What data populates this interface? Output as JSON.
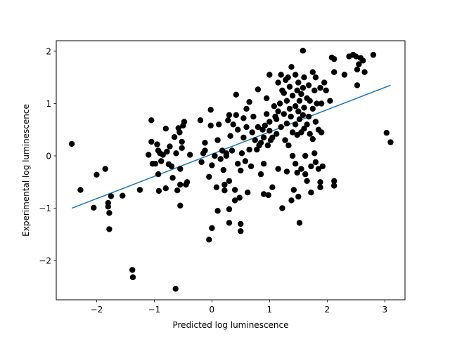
{
  "chart_data": {
    "type": "scatter",
    "title": "",
    "xlabel": "Predicted log luminescence",
    "ylabel": "Experimental log luminescence",
    "xlim": [
      -2.7,
      3.35
    ],
    "ylim": [
      -2.75,
      2.2
    ],
    "xticks": [
      -2,
      -1,
      0,
      1,
      2,
      3
    ],
    "yticks": [
      -2,
      -1,
      0,
      1,
      2
    ],
    "xtick_labels": [
      "−2",
      "−1",
      "0",
      "1",
      "2",
      "3"
    ],
    "ytick_labels": [
      "−2",
      "−1",
      "0",
      "1",
      "2"
    ],
    "grid": false,
    "legend": "none",
    "point_color": "#000000",
    "line_color": "#1f77b4",
    "fit_line": {
      "x": [
        -2.43,
        3.1
      ],
      "y": [
        -1.0,
        1.35
      ]
    },
    "points": [
      [
        -2.43,
        0.23
      ],
      [
        -2.28,
        -0.65
      ],
      [
        -2.05,
        -0.99
      ],
      [
        -2.0,
        -0.36
      ],
      [
        -1.85,
        -0.25
      ],
      [
        -1.8,
        -0.9
      ],
      [
        -1.8,
        -0.97
      ],
      [
        -1.78,
        -1.09
      ],
      [
        -1.78,
        -1.4
      ],
      [
        -1.75,
        -0.77
      ],
      [
        -1.55,
        -0.76
      ],
      [
        -1.38,
        -2.18
      ],
      [
        -1.37,
        -2.32
      ],
      [
        -1.25,
        -0.65
      ],
      [
        -1.1,
        0.02
      ],
      [
        -1.05,
        0.68
      ],
      [
        -1.05,
        0.27
      ],
      [
        -1.03,
        -0.15
      ],
      [
        -0.98,
        -0.15
      ],
      [
        -0.95,
        0.22
      ],
      [
        -0.93,
        0.1
      ],
      [
        -0.93,
        -0.35
      ],
      [
        -0.92,
        -0.67
      ],
      [
        -0.9,
        0.05
      ],
      [
        -0.88,
        -0.1
      ],
      [
        -0.85,
        0.02
      ],
      [
        -0.8,
        -0.62
      ],
      [
        -0.8,
        0.52
      ],
      [
        -0.78,
        0.08
      ],
      [
        -0.75,
        -0.16
      ],
      [
        -0.73,
        0.18
      ],
      [
        -0.7,
        -0.2
      ],
      [
        -0.68,
        -0.42
      ],
      [
        -0.65,
        0.36
      ],
      [
        -0.62,
        0.05
      ],
      [
        -0.6,
        -0.66
      ],
      [
        -0.58,
        0.53
      ],
      [
        -0.56,
        0.45
      ],
      [
        -0.55,
        -0.25
      ],
      [
        -0.52,
        0.15
      ],
      [
        -0.5,
        0.58
      ],
      [
        -0.48,
        0.65
      ],
      [
        -0.45,
        -0.55
      ],
      [
        -0.43,
        -0.5
      ],
      [
        -0.55,
        -0.95
      ],
      [
        -0.38,
        0.02
      ],
      [
        -0.55,
        -0.55
      ],
      [
        -0.63,
        -2.54
      ],
      [
        -0.52,
        0.27
      ],
      [
        -0.2,
        0.68
      ],
      [
        -0.18,
        -0.12
      ],
      [
        -0.15,
        0.05
      ],
      [
        -0.12,
        0.1
      ],
      [
        -0.12,
        0.25
      ],
      [
        -0.05,
        -0.4
      ],
      [
        -0.05,
        -1.6
      ],
      [
        -0.02,
        0.88
      ],
      [
        -0.02,
        0.58
      ],
      [
        0.0,
        -0.18
      ],
      [
        0.0,
        -1.38
      ],
      [
        0.05,
        0.0
      ],
      [
        0.08,
        -0.6
      ],
      [
        0.1,
        -1.05
      ],
      [
        0.1,
        0.3
      ],
      [
        0.12,
        0.6
      ],
      [
        0.15,
        -0.06
      ],
      [
        0.18,
        0.1
      ],
      [
        0.2,
        -0.27
      ],
      [
        0.22,
        -0.55
      ],
      [
        0.22,
        -0.66
      ],
      [
        0.25,
        0.0
      ],
      [
        0.25,
        0.05
      ],
      [
        0.28,
        0.68
      ],
      [
        0.3,
        0.78
      ],
      [
        0.3,
        -0.48
      ],
      [
        0.3,
        -1.02
      ],
      [
        0.3,
        -1.28
      ],
      [
        0.32,
        0.38
      ],
      [
        0.35,
        0.1
      ],
      [
        0.37,
        0.6
      ],
      [
        0.4,
        -0.65
      ],
      [
        0.4,
        -0.85
      ],
      [
        0.42,
        0.78
      ],
      [
        0.42,
        1.17
      ],
      [
        0.45,
        0.5
      ],
      [
        0.45,
        -0.15
      ],
      [
        0.48,
        -0.8
      ],
      [
        0.5,
        -0.28
      ],
      [
        0.5,
        -1.3
      ],
      [
        0.5,
        -1.44
      ],
      [
        0.52,
        0.05
      ],
      [
        0.55,
        0.35
      ],
      [
        0.55,
        0.72
      ],
      [
        0.58,
        -0.1
      ],
      [
        0.6,
        0.55
      ],
      [
        0.6,
        0.9
      ],
      [
        0.62,
        -0.7
      ],
      [
        0.65,
        1.03
      ],
      [
        0.65,
        0.12
      ],
      [
        0.68,
        -0.2
      ],
      [
        0.7,
        0.45
      ],
      [
        0.72,
        0.75
      ],
      [
        0.75,
        0.3
      ],
      [
        0.78,
        0.12
      ],
      [
        0.8,
        1.27
      ],
      [
        0.8,
        0.55
      ],
      [
        0.82,
        0.2
      ],
      [
        0.85,
        0.25
      ],
      [
        0.85,
        -0.35
      ],
      [
        0.88,
        0.5
      ],
      [
        0.9,
        0.35
      ],
      [
        0.9,
        -0.15
      ],
      [
        0.9,
        -0.73
      ],
      [
        0.92,
        0.58
      ],
      [
        0.95,
        1.1
      ],
      [
        0.95,
        0.8
      ],
      [
        0.97,
        0.2
      ],
      [
        0.98,
        -0.75
      ],
      [
        1.0,
        1.55
      ],
      [
        1.0,
        0.65
      ],
      [
        1.0,
        0.48
      ],
      [
        1.02,
        0.3
      ],
      [
        1.05,
        0.35
      ],
      [
        1.05,
        -0.6
      ],
      [
        1.08,
        0.95
      ],
      [
        1.1,
        0.75
      ],
      [
        1.12,
        0.7
      ],
      [
        1.12,
        0.42
      ],
      [
        1.15,
        0.85
      ],
      [
        1.15,
        1.4
      ],
      [
        1.15,
        -0.25
      ],
      [
        1.18,
        1.0
      ],
      [
        1.2,
        0.55
      ],
      [
        1.2,
        1.55
      ],
      [
        1.22,
        1.25
      ],
      [
        1.22,
        -1.0
      ],
      [
        1.25,
        0.8
      ],
      [
        1.25,
        1.2
      ],
      [
        1.27,
        0.3
      ],
      [
        1.28,
        1.45
      ],
      [
        1.3,
        1.05
      ],
      [
        1.3,
        0.62
      ],
      [
        1.3,
        -0.3
      ],
      [
        1.32,
        1.5
      ],
      [
        1.33,
        0.2
      ],
      [
        1.35,
        1.32
      ],
      [
        1.35,
        0.9
      ],
      [
        1.37,
        0.75
      ],
      [
        1.38,
        1.7
      ],
      [
        1.38,
        -0.85
      ],
      [
        1.4,
        1.15
      ],
      [
        1.4,
        0.45
      ],
      [
        1.4,
        0.0
      ],
      [
        1.42,
        -0.65
      ],
      [
        1.45,
        1.55
      ],
      [
        1.45,
        0.95
      ],
      [
        1.45,
        0.6
      ],
      [
        1.45,
        -0.15
      ],
      [
        1.48,
        1.25
      ],
      [
        1.48,
        0.4
      ],
      [
        1.48,
        -0.32
      ],
      [
        1.5,
        0.85
      ],
      [
        1.5,
        1.4
      ],
      [
        1.5,
        -0.78
      ],
      [
        1.52,
        1.05
      ],
      [
        1.52,
        0.7
      ],
      [
        1.52,
        -1.28
      ],
      [
        1.55,
        1.18
      ],
      [
        1.55,
        0.45
      ],
      [
        1.55,
        -0.25
      ],
      [
        1.58,
        2.01
      ],
      [
        1.58,
        1.3
      ],
      [
        1.58,
        0.78
      ],
      [
        1.6,
        0.92
      ],
      [
        1.6,
        1.5
      ],
      [
        1.6,
        0.52
      ],
      [
        1.62,
        0.0
      ],
      [
        1.62,
        -0.35
      ],
      [
        1.65,
        1.1
      ],
      [
        1.65,
        0.6
      ],
      [
        1.65,
        -0.48
      ],
      [
        1.68,
        1.35
      ],
      [
        1.68,
        0.75
      ],
      [
        1.7,
        1.05
      ],
      [
        1.7,
        0.42
      ],
      [
        1.72,
        -0.7
      ],
      [
        1.72,
        -0.2
      ],
      [
        1.75,
        1.6
      ],
      [
        1.75,
        0.9
      ],
      [
        1.75,
        0.32
      ],
      [
        1.78,
        1.25
      ],
      [
        1.78,
        0.05
      ],
      [
        1.8,
        1.5
      ],
      [
        1.8,
        0.65
      ],
      [
        1.8,
        -0.12
      ],
      [
        1.82,
        1.0
      ],
      [
        1.85,
        0.5
      ],
      [
        1.85,
        -0.25
      ],
      [
        1.88,
        1.3
      ],
      [
        1.88,
        -0.5
      ],
      [
        1.88,
        -0.6
      ],
      [
        1.9,
        1.0
      ],
      [
        1.9,
        0.45
      ],
      [
        1.92,
        -0.2
      ],
      [
        1.95,
        1.4
      ],
      [
        1.98,
        1.25
      ],
      [
        2.05,
        1.05
      ],
      [
        2.08,
        1.88
      ],
      [
        2.12,
        1.85
      ],
      [
        2.12,
        1.6
      ],
      [
        2.12,
        -0.48
      ],
      [
        2.12,
        -0.57
      ],
      [
        2.3,
        1.55
      ],
      [
        2.38,
        1.9
      ],
      [
        2.45,
        1.93
      ],
      [
        2.5,
        1.9
      ],
      [
        2.52,
        1.35
      ],
      [
        2.52,
        1.65
      ],
      [
        2.55,
        1.75
      ],
      [
        2.58,
        1.87
      ],
      [
        2.62,
        1.82
      ],
      [
        2.65,
        1.6
      ],
      [
        2.8,
        1.93
      ],
      [
        3.03,
        0.44
      ],
      [
        3.1,
        0.26
      ]
    ]
  }
}
